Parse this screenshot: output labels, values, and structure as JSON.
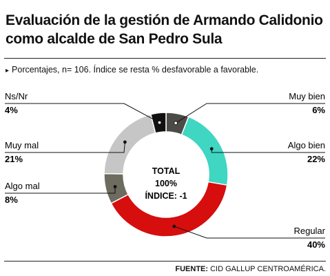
{
  "header": {
    "title": "Evaluación de la gestión de Armando Calidonio como alcalde de San Pedro Sula",
    "subtitle_marker": "▸",
    "subtitle": "Porcentajes, n= 106. Índice se resta % desfavorable a favorable."
  },
  "footer": {
    "source_label": "FUENTE:",
    "source_text": " CID GALLUP CENTROAMÉRICA."
  },
  "chart_data": {
    "type": "pie",
    "categories": [
      "Muy bien",
      "Algo bien",
      "Regular",
      "Algo mal",
      "Muy mal",
      "Ns/Nr"
    ],
    "values": [
      6,
      22,
      40,
      8,
      21,
      4
    ],
    "value_labels": [
      "6%",
      "22%",
      "40%",
      "8%",
      "21%",
      "4%"
    ],
    "colors": [
      "#4d4b47",
      "#3fd6c2",
      "#d60e0e",
      "#6e6b5f",
      "#c6c6c6",
      "#111111"
    ],
    "center_text": [
      "TOTAL",
      "100%",
      "ÍNDICE: -1"
    ]
  }
}
